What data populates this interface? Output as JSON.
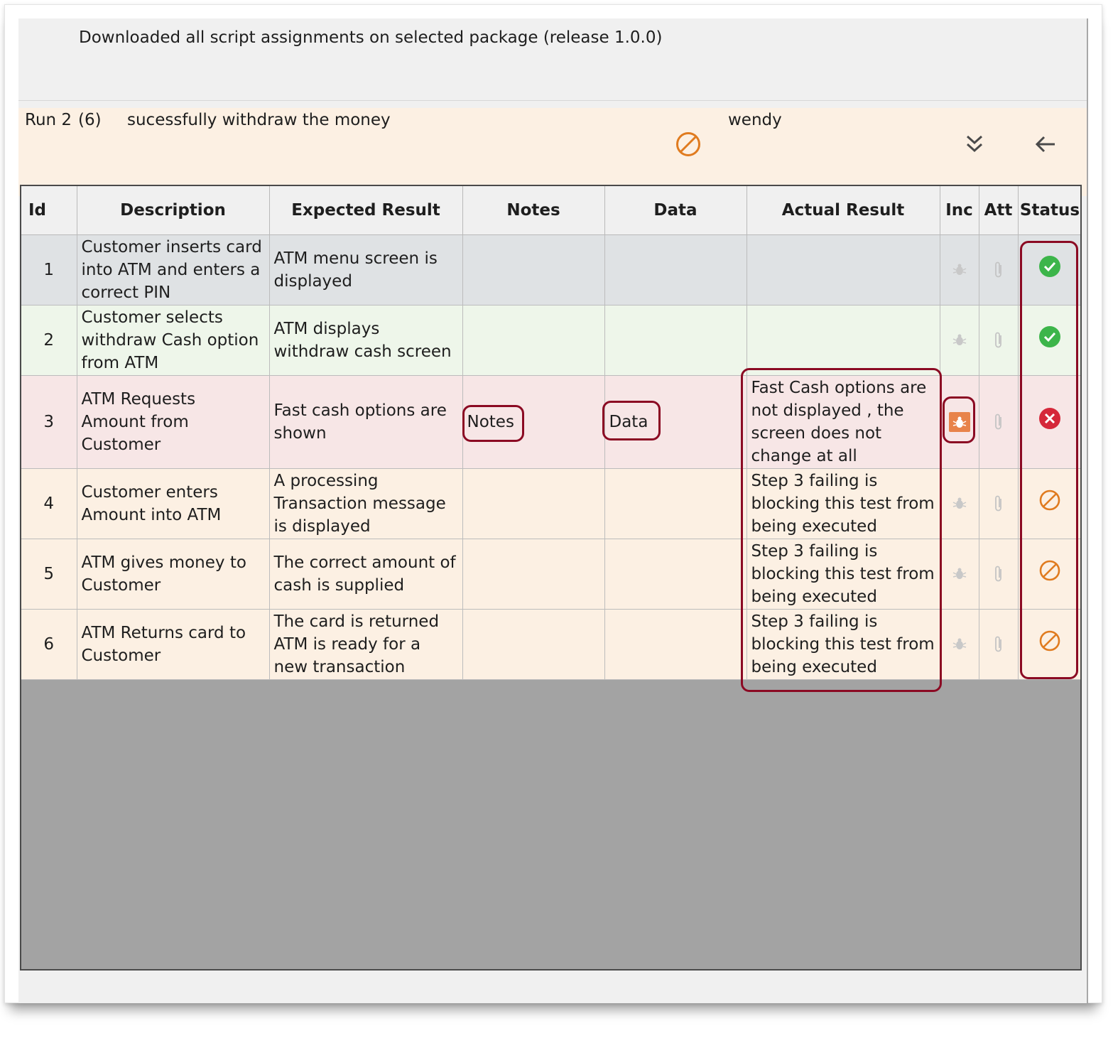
{
  "header": {
    "message": "Downloaded all script assignments on selected package (release 1.0.0)"
  },
  "run": {
    "run_label": "Run 2",
    "count_label": "(6)",
    "name": "sucessfully withdraw the money",
    "user": "wendy",
    "status_icon": "blocked-icon",
    "expand_icon": "double-chevron-down-icon",
    "back_icon": "arrow-left-icon"
  },
  "table": {
    "columns": [
      "Id",
      "Description",
      "Expected Result",
      "Notes",
      "Data",
      "Actual Result",
      "Inc",
      "Att",
      "Status"
    ],
    "rows": [
      {
        "id": "1",
        "description": "Customer inserts card into ATM and enters a correct PIN",
        "expected": "ATM menu screen is displayed",
        "notes": "",
        "data": "",
        "actual": "",
        "status": "passed"
      },
      {
        "id": "2",
        "description": "Customer  selects withdraw Cash option from ATM",
        "expected": "ATM displays withdraw cash screen",
        "notes": "",
        "data": "",
        "actual": "",
        "status": "passed"
      },
      {
        "id": "3",
        "description": "ATM Requests Amount from Customer",
        "expected": "Fast cash options  are shown",
        "notes": "Notes",
        "data": "Data",
        "actual": "Fast Cash options are not displayed , the screen does not change at all",
        "status": "failed"
      },
      {
        "id": "4",
        "description": "Customer enters Amount into ATM",
        "expected": "A processing Transaction message is displayed",
        "notes": "",
        "data": "",
        "actual": "Step 3 failing is blocking this test from being executed",
        "status": "blocked"
      },
      {
        "id": "5",
        "description": "ATM gives money to Customer",
        "expected": "The correct amount of cash is supplied",
        "notes": "",
        "data": "",
        "actual": "Step 3 failing is blocking this test from being executed",
        "status": "blocked"
      },
      {
        "id": "6",
        "description": "ATM Returns card to Customer",
        "expected": "The card is returned ATM is ready for a new transaction",
        "notes": "",
        "data": "",
        "actual": "Step 3 failing is blocking this test from being executed",
        "status": "blocked"
      }
    ]
  },
  "colors": {
    "pass": "#3cb54a",
    "fail": "#d5283a",
    "blocked": "#e07b1f",
    "highlight": "#8b0a23",
    "incident_active": "#e8834a"
  }
}
